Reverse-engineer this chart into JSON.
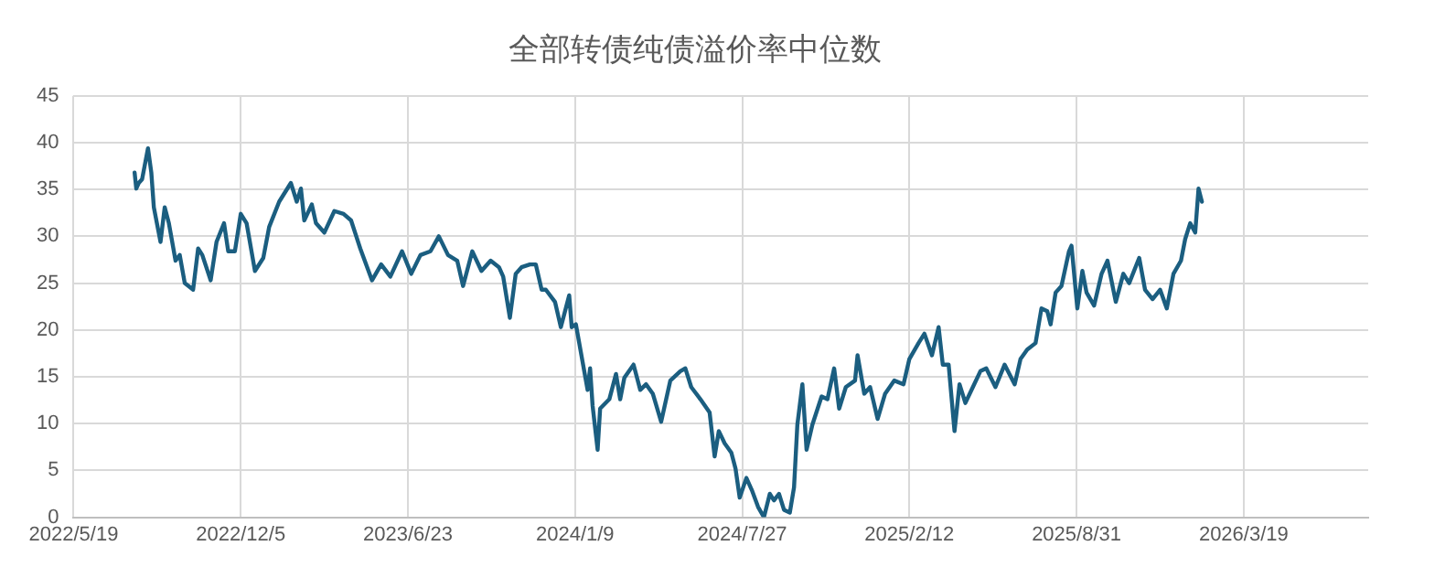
{
  "chart_data": {
    "type": "line",
    "title": "全部转债纯债溢价率中位数",
    "x": [
      "2022-07-31",
      "2022-08-02",
      "2022-08-05",
      "2022-08-09",
      "2022-08-16",
      "2022-08-20",
      "2022-08-23",
      "2022-08-31",
      "2022-09-05",
      "2022-09-10",
      "2022-09-18",
      "2022-09-23",
      "2022-09-29",
      "2022-10-09",
      "2022-10-15",
      "2022-10-20",
      "2022-10-30",
      "2022-11-06",
      "2022-11-15",
      "2022-11-20",
      "2022-11-28",
      "2022-12-05",
      "2022-12-12",
      "2022-12-22",
      "2023-01-01",
      "2023-01-08",
      "2023-01-20",
      "2023-02-03",
      "2023-02-10",
      "2023-02-15",
      "2023-02-19",
      "2023-02-28",
      "2023-03-05",
      "2023-03-15",
      "2023-03-27",
      "2023-04-07",
      "2023-04-16",
      "2023-04-27",
      "2023-05-11",
      "2023-05-22",
      "2023-06-02",
      "2023-06-16",
      "2023-06-27",
      "2023-07-08",
      "2023-07-20",
      "2023-07-30",
      "2023-08-10",
      "2023-08-21",
      "2023-08-28",
      "2023-09-08",
      "2023-09-19",
      "2023-09-30",
      "2023-10-10",
      "2023-10-15",
      "2023-10-23",
      "2023-10-30",
      "2023-11-06",
      "2023-11-16",
      "2023-11-23",
      "2023-11-30",
      "2023-12-05",
      "2023-12-16",
      "2023-12-23",
      "2024-01-02",
      "2024-01-05",
      "2024-01-10",
      "2024-01-18",
      "2024-01-24",
      "2024-01-27",
      "2024-01-30",
      "2024-02-05",
      "2024-02-08",
      "2024-02-19",
      "2024-02-27",
      "2024-03-03",
      "2024-03-08",
      "2024-03-19",
      "2024-03-27",
      "2024-04-03",
      "2024-04-11",
      "2024-04-21",
      "2024-05-02",
      "2024-05-14",
      "2024-05-20",
      "2024-05-27",
      "2024-06-07",
      "2024-06-18",
      "2024-06-24",
      "2024-06-29",
      "2024-07-06",
      "2024-07-14",
      "2024-07-19",
      "2024-07-24",
      "2024-08-01",
      "2024-08-08",
      "2024-08-15",
      "2024-08-22",
      "2024-08-29",
      "2024-09-03",
      "2024-09-09",
      "2024-09-15",
      "2024-09-22",
      "2024-09-27",
      "2024-10-01",
      "2024-10-07",
      "2024-10-12",
      "2024-10-19",
      "2024-10-30",
      "2024-11-06",
      "2024-11-14",
      "2024-11-20",
      "2024-11-28",
      "2024-12-09",
      "2024-12-12",
      "2024-12-20",
      "2024-12-27",
      "2025-01-05",
      "2025-01-14",
      "2025-01-25",
      "2025-02-05",
      "2025-02-12",
      "2025-02-23",
      "2025-03-02",
      "2025-03-11",
      "2025-03-19",
      "2025-03-24",
      "2025-03-31",
      "2025-04-07",
      "2025-04-13",
      "2025-04-20",
      "2025-04-29",
      "2025-05-08",
      "2025-05-15",
      "2025-05-26",
      "2025-06-06",
      "2025-06-18",
      "2025-06-25",
      "2025-07-03",
      "2025-07-13",
      "2025-07-20",
      "2025-07-27",
      "2025-07-31",
      "2025-08-06",
      "2025-08-13",
      "2025-08-22",
      "2025-08-25",
      "2025-09-01",
      "2025-09-07",
      "2025-09-12",
      "2025-09-21",
      "2025-09-30",
      "2025-10-07",
      "2025-10-17",
      "2025-10-26",
      "2025-11-02",
      "2025-11-14",
      "2025-11-21",
      "2025-11-30",
      "2025-12-09",
      "2025-12-17",
      "2025-12-25",
      "2026-01-03",
      "2026-01-08",
      "2026-01-14",
      "2026-01-20",
      "2026-01-24",
      "2026-01-28"
    ],
    "series": [
      {
        "color": "#1b5e80",
        "values": [
          36.8,
          35.1,
          35.7,
          36.1,
          39.4,
          36.8,
          33.1,
          29.4,
          33.1,
          31.4,
          27.4,
          28.0,
          25.0,
          24.3,
          28.7,
          28.0,
          25.3,
          29.4,
          31.4,
          28.4,
          28.4,
          32.4,
          31.4,
          26.3,
          27.7,
          31.0,
          33.7,
          35.7,
          33.7,
          35.1,
          31.7,
          33.4,
          31.4,
          30.4,
          32.7,
          32.4,
          31.7,
          28.7,
          25.3,
          27.0,
          25.7,
          28.4,
          26.0,
          28.0,
          28.4,
          30.0,
          28.0,
          27.4,
          24.7,
          28.4,
          26.3,
          27.4,
          26.7,
          25.7,
          21.3,
          26.0,
          26.7,
          27.0,
          27.0,
          24.3,
          24.3,
          23.0,
          20.3,
          23.7,
          20.3,
          20.6,
          16.6,
          13.6,
          15.9,
          11.9,
          7.2,
          11.6,
          12.6,
          15.3,
          12.6,
          14.9,
          16.3,
          13.6,
          14.2,
          13.2,
          10.2,
          14.6,
          15.6,
          15.9,
          13.9,
          12.6,
          11.2,
          6.5,
          9.2,
          7.9,
          6.9,
          5.2,
          2.1,
          4.2,
          2.8,
          1.1,
          0.0,
          2.5,
          1.8,
          2.5,
          0.8,
          0.5,
          3.2,
          9.9,
          14.2,
          7.2,
          9.9,
          12.9,
          12.6,
          15.9,
          11.6,
          13.9,
          14.6,
          17.3,
          13.2,
          13.9,
          10.5,
          13.2,
          14.6,
          14.2,
          16.9,
          18.6,
          19.6,
          17.3,
          20.3,
          16.3,
          16.3,
          9.2,
          14.2,
          12.2,
          13.9,
          15.6,
          15.9,
          13.9,
          16.3,
          14.2,
          16.9,
          17.9,
          18.6,
          22.3,
          22.0,
          20.6,
          24.0,
          24.7,
          28.4,
          29.0,
          22.3,
          26.3,
          24.0,
          22.6,
          26.0,
          27.4,
          23.0,
          26.0,
          25.0,
          27.7,
          24.3,
          23.3,
          24.3,
          22.3,
          26.0,
          27.4,
          29.7,
          31.4,
          30.4,
          35.1,
          33.7
        ]
      }
    ],
    "xlim": [
      "2022-05-19",
      "2026-08-15"
    ],
    "xticks": [
      {
        "value": "2022-05-19",
        "label": "2022/5/19"
      },
      {
        "value": "2022-12-05",
        "label": "2022/12/5"
      },
      {
        "value": "2023-06-23",
        "label": "2023/6/23"
      },
      {
        "value": "2024-01-09",
        "label": "2024/1/9"
      },
      {
        "value": "2024-07-27",
        "label": "2024/7/27"
      },
      {
        "value": "2025-02-12",
        "label": "2025/2/12"
      },
      {
        "value": "2025-08-31",
        "label": "2025/8/31"
      },
      {
        "value": "2026-03-19",
        "label": "2026/3/19"
      }
    ],
    "ylim": [
      0,
      45
    ],
    "yticks": [
      0,
      5,
      10,
      15,
      20,
      25,
      30,
      35,
      40,
      45
    ],
    "grid": true,
    "line_style": "solid",
    "marker": "none"
  }
}
